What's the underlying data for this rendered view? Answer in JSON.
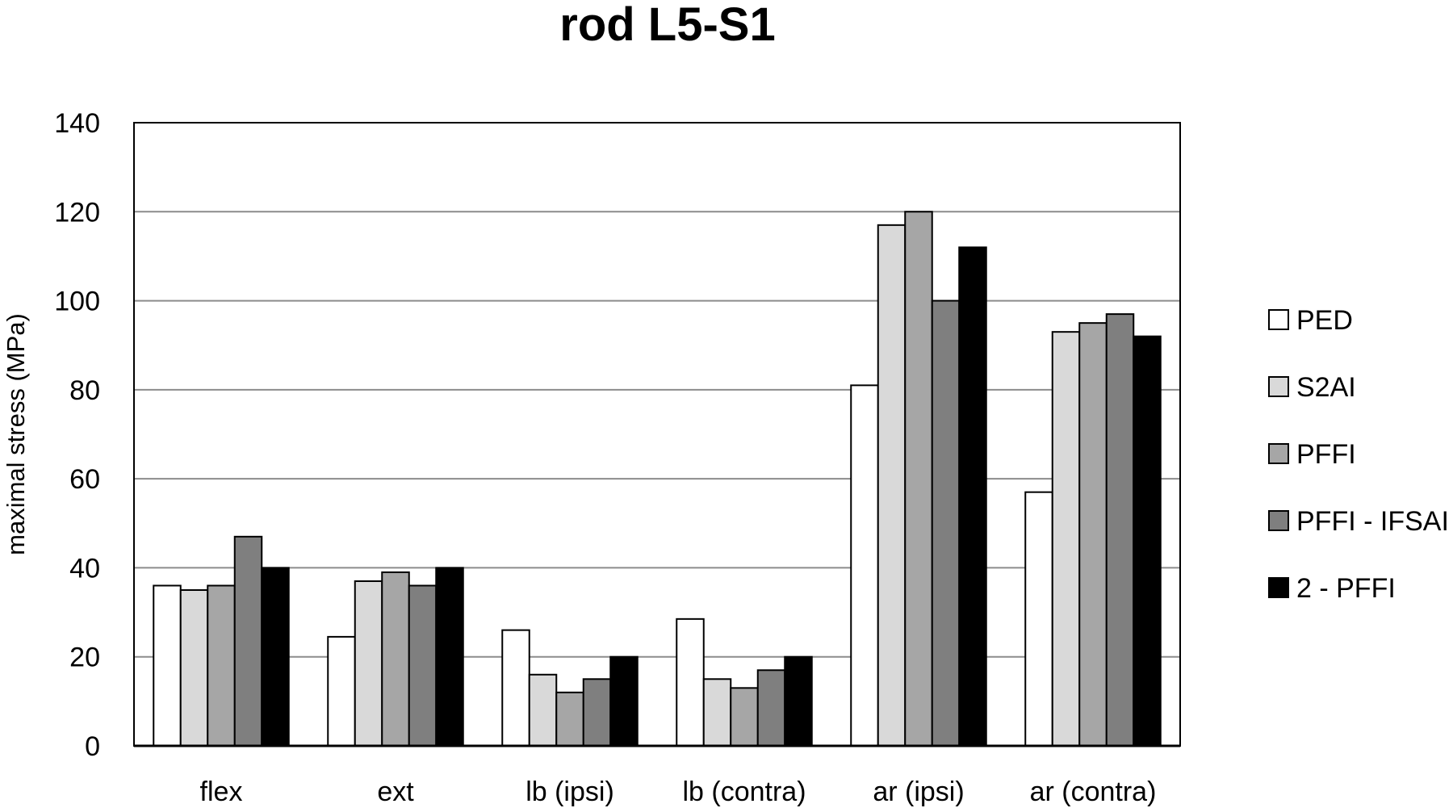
{
  "chart_data": {
    "type": "bar",
    "title": "rod L5-S1",
    "xlabel": "",
    "ylabel": "maximal stress (MPa)",
    "ylim": [
      0,
      140
    ],
    "yticks": [
      0,
      20,
      40,
      60,
      80,
      100,
      120,
      140
    ],
    "grid": true,
    "legend_position": "right",
    "categories": [
      "flex",
      "ext",
      "lb (ipsi)",
      "lb (contra)",
      "ar (ipsi)",
      "ar (contra)"
    ],
    "series": [
      {
        "name": "PED",
        "color": "#ffffff",
        "values": [
          36,
          24.5,
          26,
          28.5,
          81,
          57
        ]
      },
      {
        "name": "S2AI",
        "color": "#d9d9d9",
        "values": [
          35,
          37,
          16,
          15,
          117,
          93
        ]
      },
      {
        "name": "PFFI",
        "color": "#a6a6a6",
        "values": [
          36,
          39,
          12,
          13,
          120,
          95
        ]
      },
      {
        "name": "PFFI - IFSAI",
        "color": "#7f7f7f",
        "values": [
          47,
          36,
          15,
          17,
          100,
          97
        ]
      },
      {
        "name": "2 - PFFI",
        "color": "#000000",
        "values": [
          40,
          40,
          20,
          20,
          112,
          92
        ]
      }
    ]
  }
}
